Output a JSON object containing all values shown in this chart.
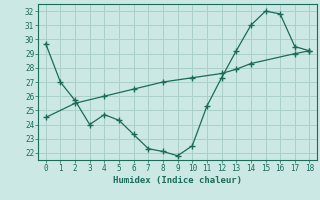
{
  "xlabel": "Humidex (Indice chaleur)",
  "bg_color": "#cce8e4",
  "line_color": "#1a6b5a",
  "grid_color": "#aad0ca",
  "xlim": [
    -0.5,
    18.5
  ],
  "ylim": [
    21.5,
    32.5
  ],
  "xticks": [
    0,
    1,
    2,
    3,
    4,
    5,
    6,
    7,
    8,
    9,
    10,
    11,
    12,
    13,
    14,
    15,
    16,
    17,
    18
  ],
  "yticks": [
    22,
    23,
    24,
    25,
    26,
    27,
    28,
    29,
    30,
    31,
    32
  ],
  "line1_x": [
    0,
    1,
    2,
    3,
    4,
    5,
    6,
    7,
    8,
    9,
    10,
    11,
    12,
    13,
    14,
    15,
    16,
    17,
    18
  ],
  "line1_y": [
    29.7,
    27.0,
    25.7,
    24.0,
    24.7,
    24.3,
    23.3,
    22.3,
    22.1,
    21.8,
    22.5,
    25.3,
    27.3,
    29.2,
    31.0,
    32.0,
    31.8,
    29.5,
    29.2
  ],
  "line2_x": [
    0,
    2,
    4,
    6,
    8,
    10,
    12,
    13,
    14,
    17,
    18
  ],
  "line2_y": [
    24.5,
    25.5,
    26.0,
    26.5,
    27.0,
    27.3,
    27.6,
    27.9,
    28.3,
    29.0,
    29.2
  ]
}
